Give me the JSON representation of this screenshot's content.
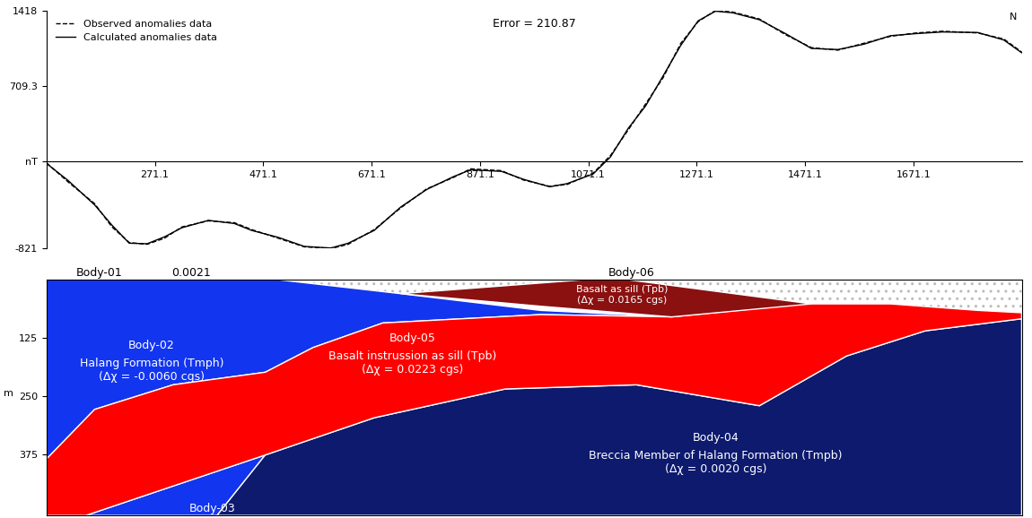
{
  "chart_data": [
    {
      "type": "line",
      "annotations": [
        "Error = 210.87",
        "N"
      ],
      "legend": "upper left",
      "xlim": [
        71.1,
        1871.1
      ],
      "xticks": [
        271.1,
        471.1,
        671.1,
        871.1,
        1071.1,
        1271.1,
        1471.1,
        1671.1
      ],
      "ylim": [
        -821,
        1418
      ],
      "yticks": [
        -821,
        {
          "value": 0,
          "label": "nT"
        },
        709.3,
        1418
      ],
      "x": [
        71,
        111,
        160,
        192,
        224,
        257,
        289,
        321,
        370,
        418,
        450,
        499,
        547,
        596,
        628,
        676,
        725,
        773,
        822,
        854,
        911,
        952,
        1000,
        1032,
        1080,
        1112,
        1145,
        1177,
        1209,
        1242,
        1274,
        1306,
        1338,
        1387,
        1435,
        1483,
        1532,
        1580,
        1629,
        1677,
        1725,
        1790,
        1838,
        1871
      ],
      "series": [
        {
          "name": "Observed anomalies data",
          "color": "#000000",
          "line_style": "dashed",
          "values": [
            -14,
            -194,
            -398,
            -617,
            -764,
            -780,
            -723,
            -617,
            -560,
            -577,
            -642,
            -723,
            -804,
            -821,
            -780,
            -642,
            -438,
            -259,
            -153,
            -71,
            -88,
            -177,
            -235,
            -218,
            -112,
            53,
            295,
            539,
            783,
            1109,
            1312,
            1418,
            1402,
            1337,
            1190,
            1068,
            1044,
            1109,
            1174,
            1206,
            1222,
            1206,
            1149,
            1027
          ]
        },
        {
          "name": "Calculated anomalies data",
          "color": "#000000",
          "line_style": "solid",
          "values": [
            -20,
            -180,
            -410,
            -600,
            -770,
            -775,
            -710,
            -625,
            -555,
            -585,
            -650,
            -715,
            -800,
            -815,
            -770,
            -650,
            -430,
            -265,
            -145,
            -80,
            -95,
            -170,
            -240,
            -210,
            -120,
            40,
            310,
            520,
            800,
            1090,
            1320,
            1410,
            1395,
            1330,
            1200,
            1060,
            1050,
            1100,
            1180,
            1200,
            1215,
            1210,
            1140,
            1020
          ]
        }
      ]
    },
    {
      "type": "polygon",
      "ylabel": "m",
      "tick_labels": "y",
      "xlim": [
        71.1,
        1871.1
      ],
      "ylim": [
        507,
        0
      ],
      "yticks": [
        125,
        250,
        375
      ],
      "bodies": [
        {
          "name": "Body-01",
          "susceptibility": "0.0021",
          "color": "#ffffff",
          "x": [
            71,
            1871,
            1871,
            1790,
            1629,
            1467,
            1225,
            725,
            499
          ],
          "depth": [
            0,
            0,
            71,
            66,
            52,
            52,
            80,
            30,
            0
          ]
        },
        {
          "name": "Body-02",
          "unit": "Halang Formation (Tmph)",
          "susceptibility": "(Δχ = -0.0060 cgs)",
          "color": "#1235f0",
          "x": [
            71,
            499,
            725,
            983,
            1225,
            983,
            838,
            692,
            563,
            475,
            305,
            160,
            71
          ],
          "depth": [
            0,
            0,
            30,
            66,
            80,
            75,
            84,
            93,
            146,
            199,
            226,
            279,
            386
          ]
        },
        {
          "name": "Body-03",
          "color": "#1235f0",
          "x": [
            144,
            475,
            386
          ],
          "depth": [
            507,
            377,
            507
          ]
        },
        {
          "name": "Body-04",
          "unit": "Breccia Member of Halang Formation (Tmpb)",
          "susceptibility": "(Δχ = 0.0020 cgs)",
          "color": "#0d1a6e",
          "x": [
            386,
            475,
            676,
            918,
            1160,
            1387,
            1548,
            1693,
            1871,
            1871
          ],
          "depth": [
            507,
            377,
            297,
            235,
            226,
            271,
            164,
            110,
            84,
            507
          ]
        },
        {
          "name": "Body-05",
          "unit": "Basalt instrussion as sill (Tpb)",
          "susceptibility": "(Δχ = 0.0223 cgs)",
          "color": "#ff0000",
          "x": [
            71,
            160,
            305,
            475,
            563,
            692,
            838,
            983,
            1225,
            1467,
            1629,
            1790,
            1871,
            1871,
            1693,
            1548,
            1387,
            1160,
            918,
            676,
            475,
            144,
            71
          ],
          "depth": [
            386,
            279,
            226,
            199,
            146,
            93,
            84,
            75,
            80,
            52,
            52,
            66,
            71,
            84,
            110,
            164,
            271,
            226,
            235,
            297,
            377,
            507,
            507
          ]
        },
        {
          "name": "Body-06",
          "unit": "Basalt as sill (Tpb)",
          "susceptibility": "(Δχ = 0.0165 cgs)",
          "color": "#8b1010",
          "x": [
            725,
            1064,
            1144,
            1483,
            1225,
            983
          ],
          "depth": [
            30,
            0,
            0,
            52,
            80,
            57
          ]
        }
      ]
    }
  ]
}
